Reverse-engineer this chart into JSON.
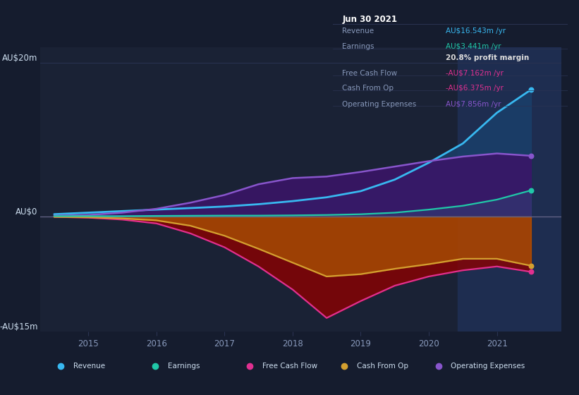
{
  "background_color": "#151c2e",
  "plot_bg_color": "#1a2235",
  "grid_color": "#2a3352",
  "text_color": "#8899bb",
  "ylim": [
    -15,
    22
  ],
  "xlim": [
    2014.3,
    2021.95
  ],
  "ytick_vals": [
    -15,
    0,
    20
  ],
  "ytick_labels": [
    "-AU$15m",
    "AU$0",
    "AU$20m"
  ],
  "xticks": [
    2015,
    2016,
    2017,
    2018,
    2019,
    2020,
    2021
  ],
  "highlight_start": 2020.42,
  "highlight_end": 2021.95,
  "highlight_color": "#1e2d50",
  "series": {
    "Revenue": {
      "color": "#38b8f0",
      "fill_color": "#1a3f6a",
      "fill_alpha": 0.85,
      "lw": 2.0,
      "x": [
        2014.5,
        2015.0,
        2015.5,
        2016.0,
        2016.5,
        2017.0,
        2017.5,
        2018.0,
        2018.5,
        2019.0,
        2019.5,
        2020.0,
        2020.5,
        2021.0,
        2021.5
      ],
      "y": [
        0.3,
        0.5,
        0.7,
        0.9,
        1.1,
        1.3,
        1.6,
        2.0,
        2.5,
        3.3,
        4.8,
        7.0,
        9.5,
        13.5,
        16.5
      ]
    },
    "Earnings": {
      "color": "#20c8a8",
      "fill_color": "#20c8a8",
      "fill_alpha": 0.12,
      "lw": 1.6,
      "x": [
        2014.5,
        2015.0,
        2015.5,
        2016.0,
        2016.5,
        2017.0,
        2017.5,
        2018.0,
        2018.5,
        2019.0,
        2019.5,
        2020.0,
        2020.5,
        2021.0,
        2021.5
      ],
      "y": [
        0.05,
        0.05,
        0.05,
        0.08,
        0.1,
        0.12,
        0.12,
        0.15,
        0.2,
        0.3,
        0.5,
        0.9,
        1.4,
        2.2,
        3.4
      ]
    },
    "Free Cash Flow": {
      "color": "#e03090",
      "fill_color": "#8b0000",
      "fill_alpha": 0.8,
      "lw": 1.6,
      "x": [
        2014.5,
        2015.0,
        2015.5,
        2016.0,
        2016.5,
        2017.0,
        2017.5,
        2018.0,
        2018.5,
        2019.0,
        2019.5,
        2020.0,
        2020.5,
        2021.0,
        2021.5
      ],
      "y": [
        -0.05,
        -0.15,
        -0.4,
        -0.9,
        -2.2,
        -4.0,
        -6.5,
        -9.5,
        -13.2,
        -11.0,
        -9.0,
        -7.8,
        -7.0,
        -6.5,
        -7.2
      ]
    },
    "Cash From Op": {
      "color": "#d4a030",
      "fill_color": "#c07000",
      "fill_alpha": 0.55,
      "lw": 1.6,
      "x": [
        2014.5,
        2015.0,
        2015.5,
        2016.0,
        2016.5,
        2017.0,
        2017.5,
        2018.0,
        2018.5,
        2019.0,
        2019.5,
        2020.0,
        2020.5,
        2021.0,
        2021.5
      ],
      "y": [
        -0.05,
        -0.1,
        -0.25,
        -0.5,
        -1.2,
        -2.5,
        -4.2,
        -6.0,
        -7.8,
        -7.5,
        -6.8,
        -6.2,
        -5.5,
        -5.5,
        -6.4
      ]
    },
    "Operating Expenses": {
      "color": "#8855cc",
      "fill_color": "#3a1568",
      "fill_alpha": 0.88,
      "lw": 1.8,
      "x": [
        2014.5,
        2015.0,
        2015.5,
        2016.0,
        2016.5,
        2017.0,
        2017.5,
        2018.0,
        2018.5,
        2019.0,
        2019.5,
        2020.0,
        2020.5,
        2021.0,
        2021.5
      ],
      "y": [
        0.1,
        0.2,
        0.5,
        1.0,
        1.8,
        2.8,
        4.2,
        5.0,
        5.2,
        5.8,
        6.5,
        7.2,
        7.8,
        8.2,
        7.9
      ]
    }
  },
  "tooltip": {
    "title": "Jun 30 2021",
    "title_color": "#ffffff",
    "bg_color": "#0d1117",
    "border_color": "#3a4460",
    "rows": [
      {
        "label": "Revenue",
        "label_color": "#8899bb",
        "value": "AU$16.543m /yr",
        "value_color": "#38b8f0"
      },
      {
        "label": "Earnings",
        "label_color": "#8899bb",
        "value": "AU$3.441m /yr",
        "value_color": "#20c8a8"
      },
      {
        "label": "",
        "label_color": "#8899bb",
        "value": "20.8% profit margin",
        "value_color": "#dddddd",
        "bold": true
      },
      {
        "label": "Free Cash Flow",
        "label_color": "#8899bb",
        "value": "-AU$7.162m /yr",
        "value_color": "#e03090"
      },
      {
        "label": "Cash From Op",
        "label_color": "#8899bb",
        "value": "-AU$6.375m /yr",
        "value_color": "#e03090"
      },
      {
        "label": "Operating Expenses",
        "label_color": "#8899bb",
        "value": "AU$7.856m /yr",
        "value_color": "#8855cc"
      }
    ],
    "sep_color": "#2a3352"
  },
  "legend_items": [
    {
      "label": "Revenue",
      "color": "#38b8f0"
    },
    {
      "label": "Earnings",
      "color": "#20c8a8"
    },
    {
      "label": "Free Cash Flow",
      "color": "#e03090"
    },
    {
      "label": "Cash From Op",
      "color": "#d4a030"
    },
    {
      "label": "Operating Expenses",
      "color": "#8855cc"
    }
  ]
}
